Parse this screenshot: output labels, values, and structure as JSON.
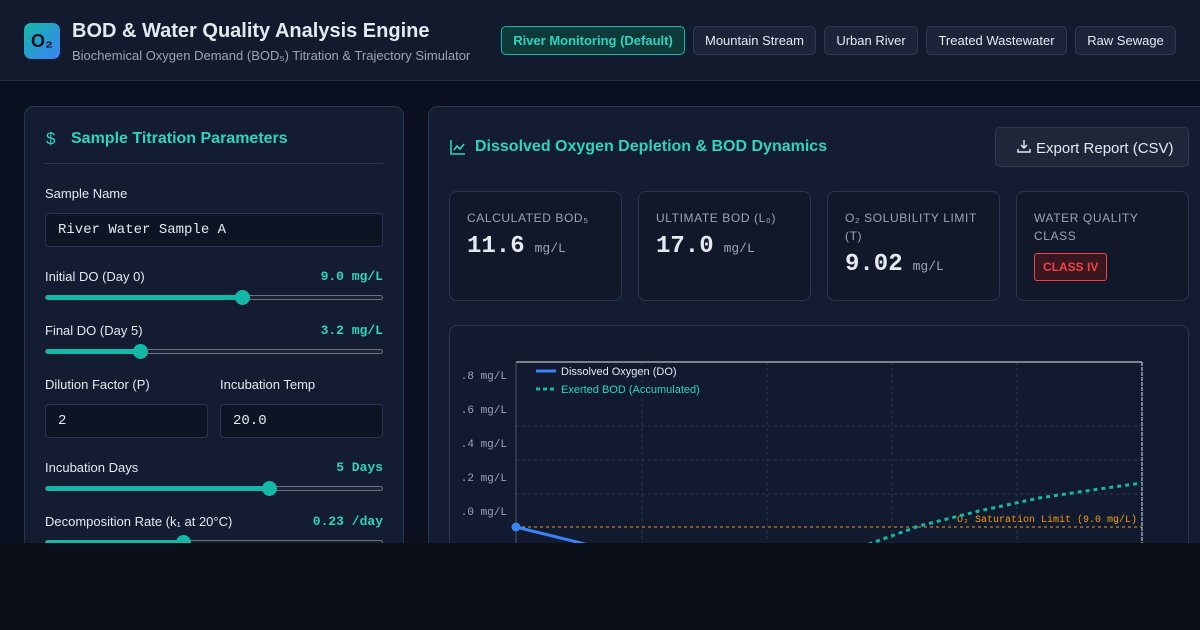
{
  "header": {
    "logo": "O₂",
    "title": "BOD & Water Quality Analysis Engine",
    "subtitle": "Biochemical Oxygen Demand (BOD₅) Titration & Trajectory Simulator",
    "presets": [
      "River Monitoring (Default)",
      "Mountain Stream",
      "Urban River",
      "Treated Wastewater",
      "Raw Sewage"
    ]
  },
  "parameters": {
    "title": "Sample Titration Parameters",
    "sample_name": {
      "label": "Sample Name",
      "value": "River Water Sample A"
    },
    "initial_do": {
      "label": "Initial DO (Day 0)",
      "value": "9.0 mg/L"
    },
    "final_do": {
      "label": "Final DO (Day 5)",
      "value": "3.2 mg/L"
    },
    "dilution": {
      "label": "Dilution Factor (P)",
      "value": "2"
    },
    "temp": {
      "label": "Incubation Temp",
      "value": "20.0"
    },
    "days": {
      "label": "Incubation Days",
      "value": "5 Days"
    },
    "rate": {
      "label": "Decomposition Rate (k₁ at 20°C)",
      "value": "0.23 /day"
    }
  },
  "results": {
    "title": "Dissolved Oxygen Depletion & BOD Dynamics",
    "export": "Export Report (CSV)",
    "cards": [
      {
        "label": "CALCULATED BOD₅",
        "value": "11.6",
        "unit": "mg/L"
      },
      {
        "label": "ULTIMATE BOD (L₀)",
        "value": "17.0",
        "unit": "mg/L"
      },
      {
        "label": "O₂ SOLUBILITY LIMIT (T)",
        "value": "9.02",
        "unit": "mg/L"
      },
      {
        "label": "WATER QUALITY CLASS",
        "badge": "CLASS IV"
      }
    ]
  },
  "chart": {
    "legend": [
      "Dissolved Oxygen (DO)",
      "Exerted BOD (Accumulated)"
    ],
    "y_axis_labels": [
      ".8 mg/L",
      ".6 mg/L",
      ".4 mg/L",
      ".2 mg/L",
      ".0 mg/L"
    ],
    "saturation_label": "O₂ Saturation Limit (9.0 mg/L)"
  }
}
